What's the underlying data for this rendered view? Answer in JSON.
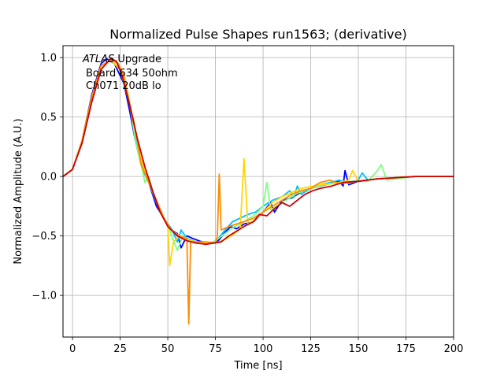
{
  "chart_data": {
    "type": "line",
    "title": "Normalized Pulse Shapes run1563; (derivative)",
    "xlabel": "Time [ns]",
    "ylabel": "Normalized Amplitude (A.U.)",
    "xlim": [
      -5,
      200
    ],
    "ylim": [
      -1.35,
      1.1
    ],
    "xticks": [
      0,
      25,
      50,
      75,
      100,
      125,
      150,
      175,
      200
    ],
    "yticks": [
      -1.0,
      -0.5,
      0.0,
      0.5,
      1.0
    ],
    "xtick_labels": [
      "0",
      "25",
      "50",
      "75",
      "100",
      "125",
      "150",
      "175",
      "200"
    ],
    "ytick_labels": [
      "−1.0",
      "−0.5",
      "0.0",
      "0.5",
      "1.0"
    ],
    "grid": true,
    "annotation": {
      "italic": "ATLAS",
      "line1_rest": " Upgrade",
      "line2": "Board 634 50ohm",
      "line3": "Ch071 20dB lo"
    },
    "series": [
      {
        "color": "#0000ff",
        "points": [
          [
            -5,
            0.0
          ],
          [
            0,
            0.06
          ],
          [
            5,
            0.3
          ],
          [
            10,
            0.68
          ],
          [
            15,
            0.95
          ],
          [
            18,
            0.99
          ],
          [
            22,
            0.95
          ],
          [
            27,
            0.78
          ],
          [
            30,
            0.55
          ],
          [
            33,
            0.3
          ],
          [
            36,
            0.1
          ],
          [
            40,
            -0.05
          ],
          [
            44,
            -0.25
          ],
          [
            48,
            -0.35
          ],
          [
            52,
            -0.45
          ],
          [
            55,
            -0.48
          ],
          [
            57,
            -0.6
          ],
          [
            60,
            -0.5
          ],
          [
            63,
            -0.52
          ],
          [
            68,
            -0.55
          ],
          [
            72,
            -0.56
          ],
          [
            76,
            -0.55
          ],
          [
            80,
            -0.47
          ],
          [
            83,
            -0.42
          ],
          [
            86,
            -0.44
          ],
          [
            90,
            -0.4
          ],
          [
            95,
            -0.38
          ],
          [
            100,
            -0.3
          ],
          [
            104,
            -0.22
          ],
          [
            106,
            -0.3
          ],
          [
            110,
            -0.2
          ],
          [
            115,
            -0.18
          ],
          [
            120,
            -0.13
          ],
          [
            125,
            -0.1
          ],
          [
            130,
            -0.08
          ],
          [
            135,
            -0.06
          ],
          [
            140,
            -0.04
          ],
          [
            142,
            -0.08
          ],
          [
            143,
            0.05
          ],
          [
            145,
            -0.07
          ],
          [
            150,
            -0.04
          ],
          [
            160,
            -0.02
          ],
          [
            170,
            -0.01
          ],
          [
            180,
            0.0
          ],
          [
            190,
            0.0
          ],
          [
            200,
            0.0
          ]
        ]
      },
      {
        "color": "#00bfff",
        "points": [
          [
            -5,
            0.0
          ],
          [
            0,
            0.06
          ],
          [
            5,
            0.3
          ],
          [
            10,
            0.66
          ],
          [
            15,
            0.93
          ],
          [
            20,
            0.98
          ],
          [
            25,
            0.9
          ],
          [
            30,
            0.6
          ],
          [
            34,
            0.25
          ],
          [
            37,
            0.05
          ],
          [
            40,
            -0.05
          ],
          [
            44,
            -0.22
          ],
          [
            48,
            -0.35
          ],
          [
            52,
            -0.44
          ],
          [
            55,
            -0.55
          ],
          [
            57,
            -0.45
          ],
          [
            60,
            -0.52
          ],
          [
            65,
            -0.55
          ],
          [
            70,
            -0.57
          ],
          [
            75,
            -0.55
          ],
          [
            80,
            -0.45
          ],
          [
            84,
            -0.38
          ],
          [
            88,
            -0.35
          ],
          [
            92,
            -0.32
          ],
          [
            96,
            -0.3
          ],
          [
            100,
            -0.25
          ],
          [
            105,
            -0.2
          ],
          [
            110,
            -0.17
          ],
          [
            114,
            -0.12
          ],
          [
            116,
            -0.18
          ],
          [
            118,
            -0.08
          ],
          [
            120,
            -0.15
          ],
          [
            125,
            -0.1
          ],
          [
            130,
            -0.07
          ],
          [
            135,
            -0.05
          ],
          [
            140,
            -0.03
          ],
          [
            145,
            -0.06
          ],
          [
            150,
            -0.03
          ],
          [
            152,
            0.03
          ],
          [
            155,
            -0.03
          ],
          [
            160,
            -0.02
          ],
          [
            170,
            -0.01
          ],
          [
            180,
            0.0
          ],
          [
            200,
            0.0
          ]
        ]
      },
      {
        "color": "#7fff7f",
        "points": [
          [
            -5,
            0.0
          ],
          [
            0,
            0.06
          ],
          [
            5,
            0.3
          ],
          [
            10,
            0.66
          ],
          [
            15,
            0.93
          ],
          [
            20,
            0.98
          ],
          [
            25,
            0.9
          ],
          [
            30,
            0.62
          ],
          [
            33,
            0.3
          ],
          [
            36,
            0.1
          ],
          [
            38,
            -0.05
          ],
          [
            40,
            0.0
          ],
          [
            42,
            -0.12
          ],
          [
            44,
            -0.2
          ],
          [
            46,
            -0.3
          ],
          [
            48,
            -0.35
          ],
          [
            50,
            -0.4
          ],
          [
            52,
            -0.5
          ],
          [
            55,
            -0.62
          ],
          [
            58,
            -0.5
          ],
          [
            62,
            -0.54
          ],
          [
            68,
            -0.56
          ],
          [
            74,
            -0.55
          ],
          [
            80,
            -0.48
          ],
          [
            85,
            -0.42
          ],
          [
            88,
            -0.4
          ],
          [
            92,
            -0.36
          ],
          [
            96,
            -0.32
          ],
          [
            100,
            -0.25
          ],
          [
            102,
            -0.05
          ],
          [
            104,
            -0.28
          ],
          [
            108,
            -0.24
          ],
          [
            112,
            -0.2
          ],
          [
            118,
            -0.14
          ],
          [
            125,
            -0.1
          ],
          [
            132,
            -0.07
          ],
          [
            140,
            -0.05
          ],
          [
            148,
            -0.04
          ],
          [
            155,
            -0.04
          ],
          [
            160,
            0.05
          ],
          [
            162,
            0.1
          ],
          [
            165,
            -0.03
          ],
          [
            170,
            -0.02
          ],
          [
            180,
            0.0
          ],
          [
            200,
            0.0
          ]
        ]
      },
      {
        "color": "#ffd700",
        "points": [
          [
            -5,
            0.0
          ],
          [
            0,
            0.06
          ],
          [
            5,
            0.3
          ],
          [
            10,
            0.66
          ],
          [
            15,
            0.93
          ],
          [
            20,
            0.98
          ],
          [
            25,
            0.9
          ],
          [
            29,
            0.7
          ],
          [
            33,
            0.38
          ],
          [
            36,
            0.15
          ],
          [
            40,
            -0.05
          ],
          [
            44,
            -0.2
          ],
          [
            48,
            -0.35
          ],
          [
            50,
            -0.4
          ],
          [
            51,
            -0.75
          ],
          [
            53,
            -0.55
          ],
          [
            56,
            -0.5
          ],
          [
            60,
            -0.53
          ],
          [
            65,
            -0.55
          ],
          [
            70,
            -0.56
          ],
          [
            75,
            -0.56
          ],
          [
            80,
            -0.53
          ],
          [
            85,
            -0.48
          ],
          [
            88,
            -0.44
          ],
          [
            90,
            0.15
          ],
          [
            92,
            -0.4
          ],
          [
            96,
            -0.36
          ],
          [
            100,
            -0.3
          ],
          [
            105,
            -0.22
          ],
          [
            110,
            -0.17
          ],
          [
            120,
            -0.1
          ],
          [
            130,
            -0.07
          ],
          [
            140,
            -0.05
          ],
          [
            145,
            -0.03
          ],
          [
            147,
            0.05
          ],
          [
            150,
            -0.04
          ],
          [
            160,
            -0.02
          ],
          [
            170,
            -0.01
          ],
          [
            180,
            0.0
          ],
          [
            200,
            0.0
          ]
        ]
      },
      {
        "color": "#ff8c00",
        "points": [
          [
            -5,
            0.0
          ],
          [
            0,
            0.06
          ],
          [
            5,
            0.3
          ],
          [
            10,
            0.66
          ],
          [
            15,
            0.93
          ],
          [
            20,
            0.98
          ],
          [
            24,
            0.95
          ],
          [
            27,
            0.85
          ],
          [
            30,
            0.6
          ],
          [
            32,
            0.48
          ],
          [
            34,
            0.3
          ],
          [
            36,
            0.1
          ],
          [
            40,
            -0.05
          ],
          [
            44,
            -0.2
          ],
          [
            48,
            -0.35
          ],
          [
            52,
            -0.45
          ],
          [
            56,
            -0.5
          ],
          [
            60,
            -0.52
          ],
          [
            61,
            -1.24
          ],
          [
            62,
            -0.55
          ],
          [
            66,
            -0.55
          ],
          [
            70,
            -0.55
          ],
          [
            75,
            -0.56
          ],
          [
            76,
            -0.5
          ],
          [
            77,
            0.02
          ],
          [
            78,
            -0.45
          ],
          [
            82,
            -0.42
          ],
          [
            86,
            -0.4
          ],
          [
            90,
            -0.38
          ],
          [
            95,
            -0.35
          ],
          [
            100,
            -0.3
          ],
          [
            105,
            -0.25
          ],
          [
            110,
            -0.2
          ],
          [
            115,
            -0.15
          ],
          [
            120,
            -0.12
          ],
          [
            125,
            -0.1
          ],
          [
            130,
            -0.05
          ],
          [
            135,
            -0.03
          ],
          [
            140,
            -0.06
          ],
          [
            145,
            -0.05
          ],
          [
            150,
            -0.04
          ],
          [
            160,
            -0.02
          ],
          [
            170,
            -0.01
          ],
          [
            180,
            0.0
          ],
          [
            200,
            0.0
          ]
        ]
      },
      {
        "color": "#cc0000",
        "points": [
          [
            -5,
            0.0
          ],
          [
            0,
            0.06
          ],
          [
            5,
            0.28
          ],
          [
            10,
            0.62
          ],
          [
            15,
            0.9
          ],
          [
            20,
            0.99
          ],
          [
            23,
            0.97
          ],
          [
            26,
            0.85
          ],
          [
            30,
            0.6
          ],
          [
            34,
            0.32
          ],
          [
            38,
            0.08
          ],
          [
            42,
            -0.12
          ],
          [
            46,
            -0.3
          ],
          [
            50,
            -0.42
          ],
          [
            55,
            -0.5
          ],
          [
            60,
            -0.54
          ],
          [
            65,
            -0.56
          ],
          [
            70,
            -0.57
          ],
          [
            74,
            -0.56
          ],
          [
            78,
            -0.55
          ],
          [
            82,
            -0.5
          ],
          [
            86,
            -0.46
          ],
          [
            90,
            -0.42
          ],
          [
            95,
            -0.38
          ],
          [
            98,
            -0.32
          ],
          [
            102,
            -0.33
          ],
          [
            106,
            -0.27
          ],
          [
            110,
            -0.22
          ],
          [
            114,
            -0.25
          ],
          [
            118,
            -0.2
          ],
          [
            122,
            -0.15
          ],
          [
            126,
            -0.12
          ],
          [
            130,
            -0.1
          ],
          [
            136,
            -0.08
          ],
          [
            142,
            -0.05
          ],
          [
            150,
            -0.04
          ],
          [
            160,
            -0.02
          ],
          [
            170,
            -0.01
          ],
          [
            180,
            0.0
          ],
          [
            190,
            0.0
          ],
          [
            200,
            0.0
          ]
        ]
      }
    ]
  }
}
